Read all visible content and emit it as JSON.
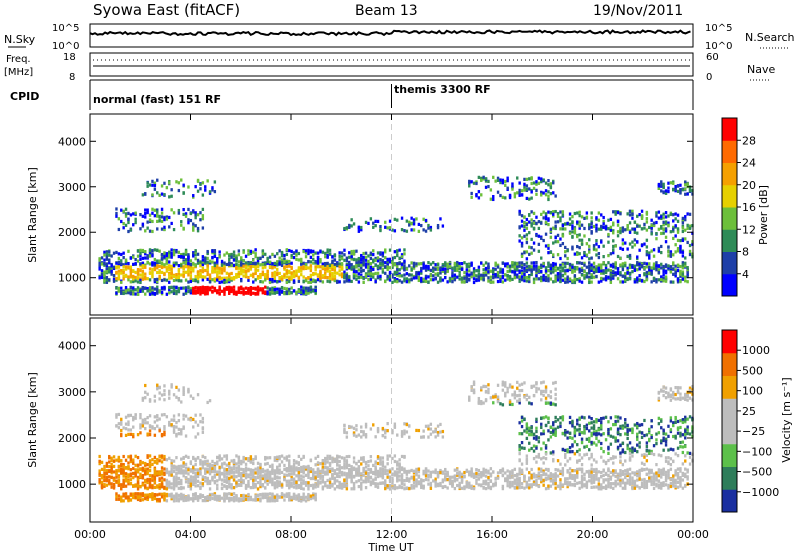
{
  "header": {
    "station": "Syowa East (fitACF)",
    "beam": "Beam 13",
    "date": "19/Nov/2011"
  },
  "nsky_panel": {
    "label": "N.Sky",
    "right_label": "N.Search",
    "ticks_left": [
      "10^5",
      "10^0"
    ],
    "ticks_right": [
      "10^5",
      "10^0"
    ]
  },
  "freq_panel": {
    "label_line1": "Freq.",
    "label_line2": "[MHz]",
    "ticks_left": [
      "18",
      "8"
    ],
    "ticks_right": [
      "60",
      "0"
    ],
    "right_label": "Nave"
  },
  "cpid_panel": {
    "label": "CPID",
    "modes": [
      "normal (fast) 151 RF",
      "themis 3300 RF"
    ],
    "mode_change_hour": 12
  },
  "x_axis": {
    "label": "Time UT",
    "ticks": [
      "00:00",
      "04:00",
      "08:00",
      "12:00",
      "16:00",
      "20:00",
      "00:00"
    ]
  },
  "chart_data": [
    {
      "type": "heatmap",
      "name": "power",
      "ylabel": "Slant Range [km]",
      "yticks": [
        1000,
        2000,
        3000,
        4000
      ],
      "ylim": [
        180,
        4600
      ],
      "xlim_hours": [
        0,
        24
      ],
      "colorbar": {
        "label": "Power [dB]",
        "ticks": [
          "28",
          "24",
          "20",
          "16",
          "12",
          "8",
          "4"
        ],
        "colors": [
          "#0000ff",
          "#1e3fa8",
          "#2e8b57",
          "#6cbf3a",
          "#e6d000",
          "#f5a000",
          "#ff6a00",
          "#ff0000"
        ]
      }
    },
    {
      "type": "heatmap",
      "name": "velocity",
      "ylabel": "Slant Range [km]",
      "yticks": [
        1000,
        2000,
        3000,
        4000
      ],
      "ylim": [
        180,
        4600
      ],
      "xlim_hours": [
        0,
        24
      ],
      "colorbar": {
        "label": "Velocity [m s⁻¹]",
        "ticks": [
          "1000",
          "500",
          "100",
          "25",
          "−25",
          "−100",
          "−500",
          "−1000"
        ],
        "colors": [
          "#1a2fa0",
          "#2e7d5a",
          "#5cc04a",
          "#bdbdbd",
          "#bdbdbd",
          "#f0a000",
          "#f07000",
          "#ff0000"
        ]
      }
    }
  ]
}
